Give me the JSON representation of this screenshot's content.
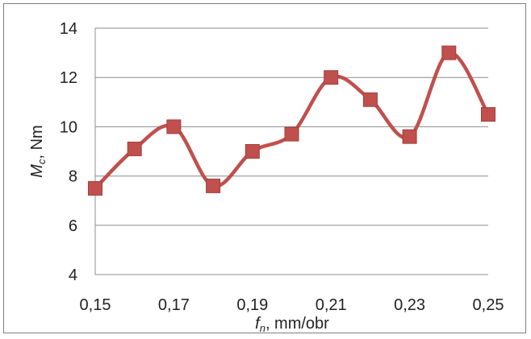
{
  "chart_data": {
    "type": "line",
    "title": "",
    "xlabel": {
      "var": "f",
      "sub": "n",
      "rest": ",  mm/obr"
    },
    "ylabel": {
      "var": "M",
      "sub": "c",
      "rest": ", Nm"
    },
    "x": [
      0.15,
      0.16,
      0.17,
      0.18,
      0.19,
      0.2,
      0.21,
      0.22,
      0.23,
      0.24,
      0.25
    ],
    "y": [
      7.5,
      9.1,
      10.0,
      7.6,
      9.0,
      9.7,
      12.0,
      11.1,
      9.6,
      13.0,
      10.5
    ],
    "xlim": [
      0.15,
      0.25
    ],
    "ylim": [
      4,
      14
    ],
    "xticks": [
      0.15,
      0.17,
      0.19,
      0.21,
      0.23,
      0.25
    ],
    "xtick_labels": [
      "0,15",
      "0,17",
      "0,19",
      "0,21",
      "0,23",
      "0,25"
    ],
    "yticks": [
      4,
      6,
      8,
      10,
      12,
      14
    ],
    "ytick_labels": [
      "4",
      "6",
      "8",
      "10",
      "12",
      "14"
    ],
    "grid": "horizontal",
    "legend": "none",
    "line_style": "smooth",
    "marker": "square",
    "series_color": "#C0504D",
    "marker_edge_color": "#A23E3B",
    "grid_color": "#8c8c8c"
  }
}
